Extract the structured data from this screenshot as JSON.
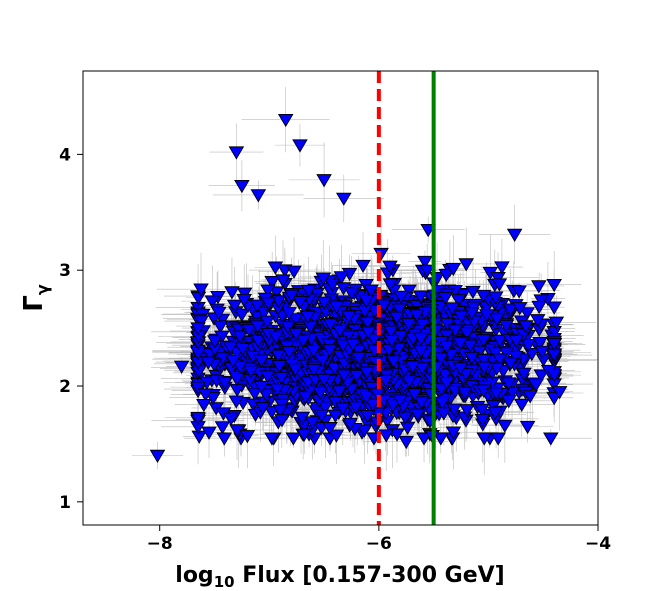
{
  "chart_data": {
    "type": "scatter",
    "title": "",
    "xlabel": {
      "main": "log",
      "sub": "10",
      "rest": " Flux [0.157-300 GeV]"
    },
    "ylabel": {
      "main": "Γ",
      "sub": "γ"
    },
    "xlim": [
      -8.7,
      -4.0
    ],
    "ylim": [
      0.8,
      4.72
    ],
    "x_ticks": [
      -8,
      -6,
      -4
    ],
    "x_tick_labels": [
      "−8",
      "−6",
      "−4"
    ],
    "y_ticks": [
      1,
      2,
      3,
      4
    ],
    "y_tick_labels": [
      "1",
      "2",
      "3",
      "4"
    ],
    "grid": false,
    "marker": "triangle-down",
    "marker_color": "#0000ff",
    "marker_edge_color": "#000000",
    "errorbar_color": "#bbbbbb",
    "vlines": [
      {
        "x": -6.0,
        "style": "dashed",
        "color": "#ff0000"
      },
      {
        "x": -5.5,
        "style": "solid",
        "color": "#008000"
      }
    ],
    "cloud": {
      "n": 1900,
      "x_center": -6.05,
      "x_spread": 0.78,
      "y_center": 2.28,
      "y_spread": 0.3,
      "x_min": -7.65,
      "x_max": -4.4,
      "y_min": 1.55,
      "y_max": 3.45
    },
    "outliers": [
      {
        "x": -8.02,
        "y": 1.4
      },
      {
        "x": -7.8,
        "y": 2.17
      },
      {
        "x": -7.65,
        "y": 2.5
      },
      {
        "x": -7.55,
        "y": 1.6
      },
      {
        "x": -7.3,
        "y": 4.02
      },
      {
        "x": -7.25,
        "y": 3.73
      },
      {
        "x": -7.1,
        "y": 3.65
      },
      {
        "x": -6.85,
        "y": 4.3
      },
      {
        "x": -6.72,
        "y": 4.08
      },
      {
        "x": -6.5,
        "y": 3.78
      },
      {
        "x": -6.32,
        "y": 3.62
      },
      {
        "x": -5.55,
        "y": 3.35
      },
      {
        "x": -5.75,
        "y": 1.52
      },
      {
        "x": -4.9,
        "y": 2.88
      },
      {
        "x": -4.72,
        "y": 2.82
      },
      {
        "x": -4.38,
        "y": 2.55
      },
      {
        "x": -4.85,
        "y": 1.66
      },
      {
        "x": -4.35,
        "y": 1.95
      },
      {
        "x": -7.35,
        "y": 1.72
      },
      {
        "x": -7.2,
        "y": 1.57
      }
    ]
  }
}
